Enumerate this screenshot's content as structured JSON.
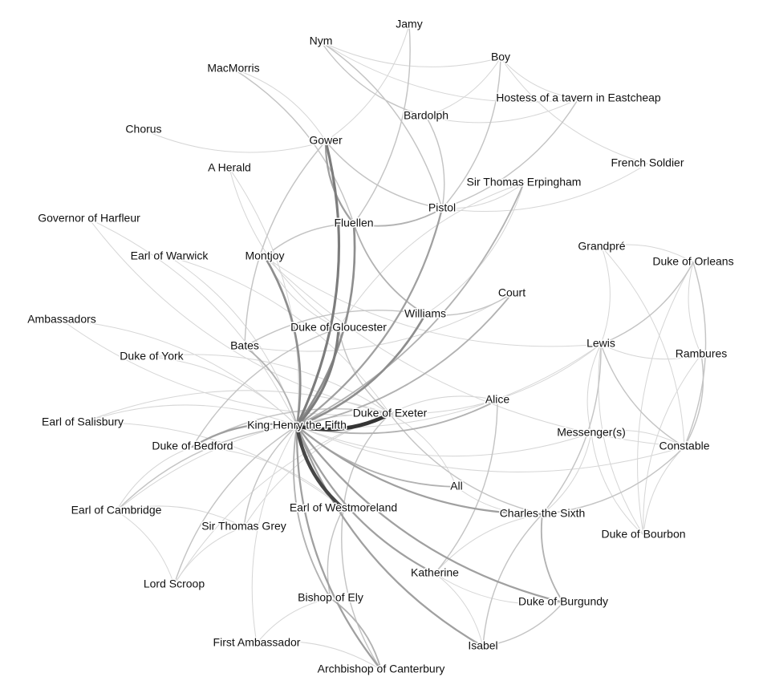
{
  "graph": {
    "nodes": [
      {
        "id": "jamy",
        "label": "Jamy"
      },
      {
        "id": "nym",
        "label": "Nym"
      },
      {
        "id": "boy",
        "label": "Boy"
      },
      {
        "id": "macmorris",
        "label": "MacMorris"
      },
      {
        "id": "hostess",
        "label": "Hostess of a tavern in Eastcheap"
      },
      {
        "id": "bardolph",
        "label": "Bardolph"
      },
      {
        "id": "chorus",
        "label": "Chorus"
      },
      {
        "id": "gower",
        "label": "Gower"
      },
      {
        "id": "french_soldier",
        "label": "French Soldier"
      },
      {
        "id": "a_herald",
        "label": "A Herald"
      },
      {
        "id": "erpingham",
        "label": "Sir Thomas Erpingham"
      },
      {
        "id": "pistol",
        "label": "Pistol"
      },
      {
        "id": "harfleur",
        "label": "Governor of Harfleur"
      },
      {
        "id": "fluellen",
        "label": "Fluellen"
      },
      {
        "id": "grandpre",
        "label": "Grandpré"
      },
      {
        "id": "warwick",
        "label": "Earl of Warwick"
      },
      {
        "id": "montjoy",
        "label": "Montjoy"
      },
      {
        "id": "orleans",
        "label": "Duke of Orleans"
      },
      {
        "id": "court",
        "label": "Court"
      },
      {
        "id": "williams",
        "label": "Williams"
      },
      {
        "id": "ambassadors",
        "label": "Ambassadors"
      },
      {
        "id": "gloucester",
        "label": "Duke of Gloucester"
      },
      {
        "id": "bates",
        "label": "Bates"
      },
      {
        "id": "lewis",
        "label": "Lewis"
      },
      {
        "id": "york",
        "label": "Duke of York"
      },
      {
        "id": "rambures",
        "label": "Rambures"
      },
      {
        "id": "alice",
        "label": "Alice"
      },
      {
        "id": "exeter",
        "label": "Duke of Exeter"
      },
      {
        "id": "salisbury",
        "label": "Earl of Salisbury"
      },
      {
        "id": "henry",
        "label": "King Henry the Fifth"
      },
      {
        "id": "messengers",
        "label": "Messenger(s)"
      },
      {
        "id": "bedford",
        "label": "Duke of Bedford"
      },
      {
        "id": "constable",
        "label": "Constable"
      },
      {
        "id": "all",
        "label": "All"
      },
      {
        "id": "cambridge",
        "label": "Earl of Cambridge"
      },
      {
        "id": "westmoreland",
        "label": "Earl of Westmoreland"
      },
      {
        "id": "charles",
        "label": "Charles the Sixth"
      },
      {
        "id": "grey",
        "label": "Sir Thomas Grey"
      },
      {
        "id": "bourbon",
        "label": "Duke of Bourbon"
      },
      {
        "id": "katherine",
        "label": "Katherine"
      },
      {
        "id": "scroop",
        "label": "Lord Scroop"
      },
      {
        "id": "ely",
        "label": "Bishop of Ely"
      },
      {
        "id": "burgundy",
        "label": "Duke of Burgundy"
      },
      {
        "id": "first_ambassador",
        "label": "First Ambassador"
      },
      {
        "id": "isabel",
        "label": "Isabel"
      },
      {
        "id": "canterbury",
        "label": "Archbishop of Canterbury"
      }
    ],
    "edges": [
      {
        "source": "henry",
        "target": "exeter",
        "weight": 10
      },
      {
        "source": "henry",
        "target": "westmoreland",
        "weight": 9
      },
      {
        "source": "henry",
        "target": "gower",
        "weight": 6
      },
      {
        "source": "henry",
        "target": "gloucester",
        "weight": 6
      },
      {
        "source": "henry",
        "target": "fluellen",
        "weight": 5
      },
      {
        "source": "henry",
        "target": "williams",
        "weight": 5
      },
      {
        "source": "henry",
        "target": "montjoy",
        "weight": 5
      },
      {
        "source": "henry",
        "target": "pistol",
        "weight": 4
      },
      {
        "source": "henry",
        "target": "burgundy",
        "weight": 4
      },
      {
        "source": "henry",
        "target": "charles",
        "weight": 4
      },
      {
        "source": "henry",
        "target": "isabel",
        "weight": 4
      },
      {
        "source": "henry",
        "target": "katherine",
        "weight": 4
      },
      {
        "source": "henry",
        "target": "bedford",
        "weight": 4
      },
      {
        "source": "henry",
        "target": "canterbury",
        "weight": 4
      },
      {
        "source": "henry",
        "target": "bates",
        "weight": 3
      },
      {
        "source": "henry",
        "target": "alice",
        "weight": 3
      },
      {
        "source": "henry",
        "target": "all",
        "weight": 3
      },
      {
        "source": "henry",
        "target": "erpingham",
        "weight": 3
      },
      {
        "source": "henry",
        "target": "court",
        "weight": 3
      },
      {
        "source": "henry",
        "target": "ely",
        "weight": 3
      },
      {
        "source": "henry",
        "target": "grey",
        "weight": 2
      },
      {
        "source": "henry",
        "target": "scroop",
        "weight": 2
      },
      {
        "source": "henry",
        "target": "cambridge",
        "weight": 2
      },
      {
        "source": "henry",
        "target": "salisbury",
        "weight": 1
      },
      {
        "source": "henry",
        "target": "york",
        "weight": 1
      },
      {
        "source": "henry",
        "target": "warwick",
        "weight": 1
      },
      {
        "source": "henry",
        "target": "a_herald",
        "weight": 1
      },
      {
        "source": "henry",
        "target": "harfleur",
        "weight": 1
      },
      {
        "source": "henry",
        "target": "first_ambassador",
        "weight": 1
      },
      {
        "source": "henry",
        "target": "ambassadors",
        "weight": 1
      },
      {
        "source": "henry",
        "target": "lewis",
        "weight": 1
      },
      {
        "source": "henry",
        "target": "messengers",
        "weight": 1
      },
      {
        "source": "henry",
        "target": "constable",
        "weight": 1
      },
      {
        "source": "gower",
        "target": "fluellen",
        "weight": 4
      },
      {
        "source": "fluellen",
        "target": "pistol",
        "weight": 3
      },
      {
        "source": "fluellen",
        "target": "williams",
        "weight": 3
      },
      {
        "source": "fluellen",
        "target": "macmorris",
        "weight": 2
      },
      {
        "source": "fluellen",
        "target": "jamy",
        "weight": 2
      },
      {
        "source": "fluellen",
        "target": "montjoy",
        "weight": 2
      },
      {
        "source": "gower",
        "target": "pistol",
        "weight": 2
      },
      {
        "source": "gower",
        "target": "macmorris",
        "weight": 1
      },
      {
        "source": "gower",
        "target": "jamy",
        "weight": 1
      },
      {
        "source": "gower",
        "target": "bates",
        "weight": 2
      },
      {
        "source": "pistol",
        "target": "nym",
        "weight": 2
      },
      {
        "source": "pistol",
        "target": "bardolph",
        "weight": 2
      },
      {
        "source": "pistol",
        "target": "boy",
        "weight": 2
      },
      {
        "source": "pistol",
        "target": "hostess",
        "weight": 2
      },
      {
        "source": "pistol",
        "target": "french_soldier",
        "weight": 1
      },
      {
        "source": "pistol",
        "target": "erpingham",
        "weight": 1
      },
      {
        "source": "nym",
        "target": "bardolph",
        "weight": 2
      },
      {
        "source": "nym",
        "target": "boy",
        "weight": 1
      },
      {
        "source": "nym",
        "target": "hostess",
        "weight": 1
      },
      {
        "source": "bardolph",
        "target": "boy",
        "weight": 1
      },
      {
        "source": "bardolph",
        "target": "hostess",
        "weight": 1
      },
      {
        "source": "boy",
        "target": "hostess",
        "weight": 1
      },
      {
        "source": "boy",
        "target": "french_soldier",
        "weight": 1
      },
      {
        "source": "williams",
        "target": "bates",
        "weight": 2
      },
      {
        "source": "williams",
        "target": "court",
        "weight": 2
      },
      {
        "source": "bates",
        "target": "court",
        "weight": 1
      },
      {
        "source": "williams",
        "target": "erpingham",
        "weight": 1
      },
      {
        "source": "gloucester",
        "target": "exeter",
        "weight": 2
      },
      {
        "source": "gloucester",
        "target": "bedford",
        "weight": 2
      },
      {
        "source": "exeter",
        "target": "westmoreland",
        "weight": 2
      },
      {
        "source": "exeter",
        "target": "bedford",
        "weight": 2
      },
      {
        "source": "exeter",
        "target": "charles",
        "weight": 2
      },
      {
        "source": "exeter",
        "target": "york",
        "weight": 1
      },
      {
        "source": "exeter",
        "target": "salisbury",
        "weight": 1
      },
      {
        "source": "exeter",
        "target": "warwick",
        "weight": 1
      },
      {
        "source": "exeter",
        "target": "lewis",
        "weight": 1
      },
      {
        "source": "exeter",
        "target": "grey",
        "weight": 1
      },
      {
        "source": "exeter",
        "target": "scroop",
        "weight": 1
      },
      {
        "source": "exeter",
        "target": "cambridge",
        "weight": 1
      },
      {
        "source": "westmoreland",
        "target": "canterbury",
        "weight": 2
      },
      {
        "source": "westmoreland",
        "target": "ely",
        "weight": 2
      },
      {
        "source": "westmoreland",
        "target": "salisbury",
        "weight": 1
      },
      {
        "source": "westmoreland",
        "target": "bedford",
        "weight": 1
      },
      {
        "source": "canterbury",
        "target": "ely",
        "weight": 3
      },
      {
        "source": "canterbury",
        "target": "first_ambassador",
        "weight": 1
      },
      {
        "source": "ely",
        "target": "first_ambassador",
        "weight": 1
      },
      {
        "source": "grey",
        "target": "scroop",
        "weight": 1
      },
      {
        "source": "grey",
        "target": "cambridge",
        "weight": 1
      },
      {
        "source": "scroop",
        "target": "cambridge",
        "weight": 1
      },
      {
        "source": "bedford",
        "target": "cambridge",
        "weight": 1
      },
      {
        "source": "charles",
        "target": "burgundy",
        "weight": 3
      },
      {
        "source": "charles",
        "target": "isabel",
        "weight": 2
      },
      {
        "source": "charles",
        "target": "lewis",
        "weight": 2
      },
      {
        "source": "charles",
        "target": "constable",
        "weight": 2
      },
      {
        "source": "charles",
        "target": "messengers",
        "weight": 1
      },
      {
        "source": "charles",
        "target": "katherine",
        "weight": 1
      },
      {
        "source": "isabel",
        "target": "burgundy",
        "weight": 2
      },
      {
        "source": "isabel",
        "target": "katherine",
        "weight": 1
      },
      {
        "source": "katherine",
        "target": "alice",
        "weight": 2
      },
      {
        "source": "katherine",
        "target": "burgundy",
        "weight": 1
      },
      {
        "source": "all",
        "target": "exeter",
        "weight": 1
      },
      {
        "source": "all",
        "target": "charles",
        "weight": 1
      },
      {
        "source": "alice",
        "target": "exeter",
        "weight": 1
      },
      {
        "source": "lewis",
        "target": "constable",
        "weight": 2
      },
      {
        "source": "lewis",
        "target": "orleans",
        "weight": 2
      },
      {
        "source": "lewis",
        "target": "rambures",
        "weight": 1
      },
      {
        "source": "lewis",
        "target": "grandpre",
        "weight": 1
      },
      {
        "source": "lewis",
        "target": "messengers",
        "weight": 1
      },
      {
        "source": "lewis",
        "target": "bourbon",
        "weight": 1
      },
      {
        "source": "constable",
        "target": "orleans",
        "weight": 2
      },
      {
        "source": "constable",
        "target": "rambures",
        "weight": 2
      },
      {
        "source": "constable",
        "target": "grandpre",
        "weight": 1
      },
      {
        "source": "constable",
        "target": "messengers",
        "weight": 1
      },
      {
        "source": "constable",
        "target": "bourbon",
        "weight": 1
      },
      {
        "source": "orleans",
        "target": "rambures",
        "weight": 1
      },
      {
        "source": "orleans",
        "target": "grandpre",
        "weight": 1
      },
      {
        "source": "orleans",
        "target": "bourbon",
        "weight": 1
      },
      {
        "source": "messengers",
        "target": "bourbon",
        "weight": 1
      },
      {
        "source": "rambures",
        "target": "bourbon",
        "weight": 1
      },
      {
        "source": "montjoy",
        "target": "gloucester",
        "weight": 1
      },
      {
        "source": "montjoy",
        "target": "lewis",
        "weight": 1
      },
      {
        "source": "montjoy",
        "target": "constable",
        "weight": 1
      },
      {
        "source": "a_herald",
        "target": "gloucester",
        "weight": 1
      },
      {
        "source": "harfleur",
        "target": "exeter",
        "weight": 1
      },
      {
        "source": "ambassadors",
        "target": "exeter",
        "weight": 1
      },
      {
        "source": "chorus",
        "target": "gower",
        "weight": 1
      },
      {
        "source": "erpingham",
        "target": "gloucester",
        "weight": 1
      }
    ]
  }
}
